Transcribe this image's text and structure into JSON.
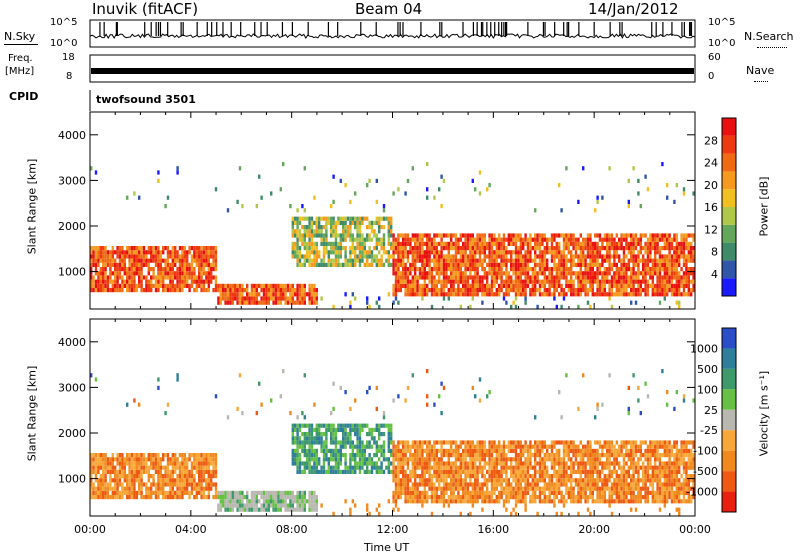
{
  "header": {
    "station": "Inuvik (fitACF)",
    "beam": "Beam 04",
    "date": "14/Jan/2012"
  },
  "noise_panel": {
    "left_label": "N.Sky",
    "right_label": "N.Search",
    "left_ticks": [
      "10^5",
      "10^0"
    ],
    "right_ticks": [
      "10^5",
      "10^0"
    ]
  },
  "freq_panel": {
    "left_label": "Freq.",
    "left_unit": "[MHz]",
    "right_label": "Nave",
    "left_ticks": [
      "18",
      "8"
    ],
    "right_ticks": [
      "60",
      "0"
    ]
  },
  "cpid_panel": {
    "label": "CPID",
    "value": "twofsound 3501"
  },
  "colors": {
    "power_scale": [
      "#1a1aff",
      "#2f56a8",
      "#3f8a68",
      "#63a85a",
      "#b0c84a",
      "#f0c020",
      "#f59a1e",
      "#f06a14",
      "#ee3a10",
      "#e81010"
    ],
    "velocity_scale": [
      "#2a4ec8",
      "#2f7e9a",
      "#3e9a6a",
      "#66c044",
      "#b8b8b0",
      "#f8a83a",
      "#f08a1e",
      "#ee5a14",
      "#e82010"
    ]
  },
  "chart_data": [
    {
      "type": "heatmap",
      "name": "power",
      "ylabel": "Slant Range [km]",
      "yticks": [
        "4000",
        "3000",
        "2000",
        "1000"
      ],
      "yvalues": [
        4000,
        3000,
        2000,
        1000
      ],
      "ylim": [
        180,
        4500
      ],
      "xlim_hours": [
        0,
        24
      ],
      "colorbar_label": "Power [dB]",
      "colorbar_ticks": [
        "28",
        "24",
        "20",
        "16",
        "12",
        "8",
        "4"
      ],
      "colorbar_range": [
        0,
        32
      ]
    },
    {
      "type": "heatmap",
      "name": "velocity",
      "ylabel": "Slant Range [km]",
      "yticks": [
        "4000",
        "3000",
        "2000",
        "1000"
      ],
      "yvalues": [
        4000,
        3000,
        2000,
        1000
      ],
      "ylim": [
        180,
        4500
      ],
      "xlim_hours": [
        0,
        24
      ],
      "xlabel": "Time UT",
      "xticks": [
        "00:00",
        "04:00",
        "08:00",
        "12:00",
        "16:00",
        "20:00",
        "00:00"
      ],
      "xtick_hours": [
        0,
        4,
        8,
        12,
        16,
        20,
        24
      ],
      "colorbar_label": "Velocity [m s⁻¹]",
      "colorbar_ticks": [
        "1000",
        "500",
        "100",
        "25",
        "-25",
        "-100",
        "-500",
        "-1000"
      ]
    }
  ]
}
